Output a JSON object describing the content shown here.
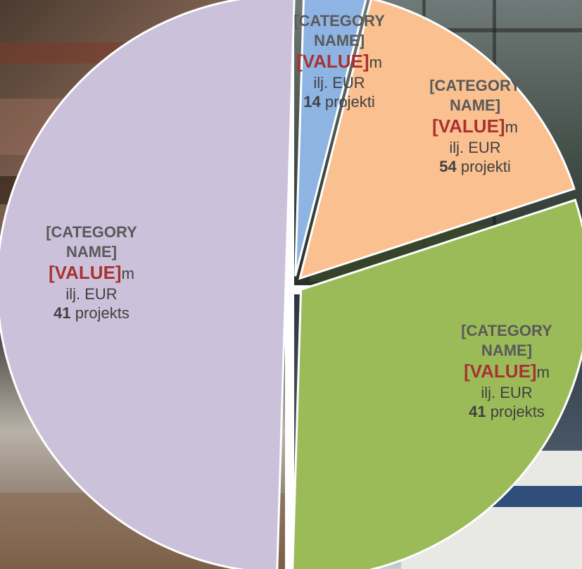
{
  "colors": {
    "slice_1": "#8eb4e3",
    "slice_2": "#fac090",
    "slice_3": "#9bbb59",
    "slice_4": "#ccc1da",
    "value_text": "#a83232",
    "category_text": "#595959",
    "body_text": "#404040"
  },
  "chart_data": {
    "type": "pie",
    "title": "",
    "slices": [
      {
        "category": "[CATEGORY NAME]",
        "value": "[VALUE]",
        "value_suffix": "m",
        "unit": "ilj. EUR",
        "count": "14",
        "count_label": "projekti",
        "fraction": 0.035,
        "color": "#8eb4e3"
      },
      {
        "category": "[CATEGORY NAME]",
        "value": "[VALUE]",
        "value_suffix": "m",
        "unit": "ilj. EUR",
        "count": "54",
        "count_label": "projekti",
        "fraction": 0.16,
        "color": "#fac090"
      },
      {
        "category": "[CATEGORY NAME]",
        "value": "[VALUE]",
        "value_suffix": "m",
        "unit": "ilj. EUR",
        "count": "41",
        "count_label": "projekts",
        "fraction": 0.305,
        "color": "#9bbb59"
      },
      {
        "category": "[CATEGORY NAME]",
        "value": "[VALUE]",
        "value_suffix": "m",
        "unit": "ilj. EUR",
        "count": "41",
        "count_label": "projekts",
        "fraction": 0.5,
        "color": "#ccc1da"
      }
    ]
  }
}
